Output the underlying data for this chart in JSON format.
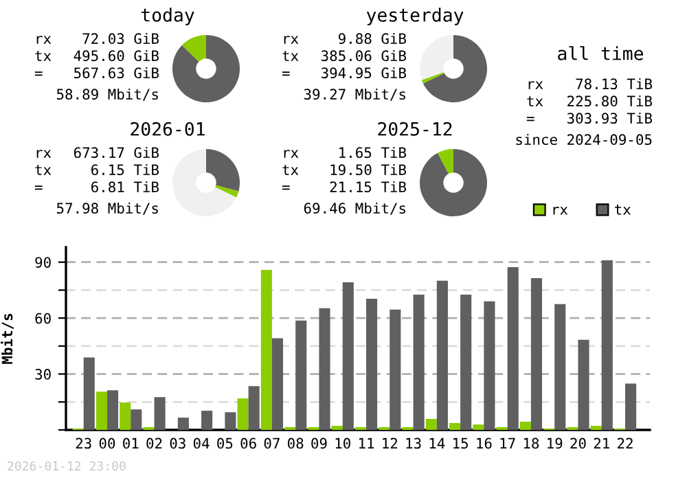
{
  "chart_data": [
    {
      "type": "donut",
      "title": "today",
      "categories": [
        null,
        null
      ],
      "values": [
        87.3,
        12.7
      ],
      "colors": [
        "#606060",
        "#8ccc00"
      ],
      "annotations": [
        "rx 72.03 GiB",
        "tx 495.60 GiB",
        "= 567.63 GiB",
        "58.89 Mbit/s"
      ]
    },
    {
      "type": "donut",
      "title": "yesterday",
      "categories": [
        null,
        null,
        null
      ],
      "values": [
        67.8,
        1.7,
        30.5
      ],
      "colors": [
        "#606060",
        "#8ccc00",
        "#f0f0f0"
      ],
      "annotations": [
        "rx 9.88 GiB",
        "tx 385.06 GiB",
        "= 394.95 GiB",
        "39.27 Mbit/s"
      ]
    },
    {
      "type": "other",
      "title": "all time",
      "annotations": [
        "rx 78.13 TiB",
        "tx 225.80 TiB",
        "= 303.93 TiB",
        "since 2024-09-05"
      ]
    },
    {
      "type": "donut",
      "title": "2026-01",
      "categories": [
        null,
        null,
        null
      ],
      "values": [
        29.1,
        3.1,
        67.8
      ],
      "colors": [
        "#606060",
        "#8ccc00",
        "#f0f0f0"
      ],
      "annotations": [
        "rx 673.17 GiB",
        "tx 6.15 TiB",
        "= 6.81 TiB",
        "57.98 Mbit/s"
      ]
    },
    {
      "type": "donut",
      "title": "2025-12",
      "categories": [
        null,
        null
      ],
      "values": [
        92.2,
        7.8
      ],
      "colors": [
        "#606060",
        "#8ccc00"
      ],
      "annotations": [
        "rx 1.65 TiB",
        "tx 19.50 TiB",
        "= 21.15 TiB",
        "69.46 Mbit/s"
      ]
    },
    {
      "type": "bar",
      "ylabel": "Mbit/s",
      "legend": "top right",
      "grid": "y",
      "categories": [
        "23",
        "00",
        "01",
        "02",
        "03",
        "04",
        "05",
        "06",
        "07",
        "08",
        "09",
        "10",
        "11",
        "12",
        "13",
        "14",
        "15",
        "16",
        "17",
        "18",
        "19",
        "20",
        "21",
        "22"
      ],
      "series": [
        {
          "name": "rx",
          "color": "#8ccc00",
          "values": [
            0.7,
            20.5,
            14.7,
            1.5,
            0,
            0,
            0,
            16.9,
            85.8,
            1.5,
            1.5,
            2.2,
            1.5,
            1.5,
            1.5,
            5.9,
            3.7,
            2.9,
            1.5,
            4.4,
            0.7,
            1.5,
            2.2,
            0.7
          ]
        },
        {
          "name": "tx",
          "color": "#606060",
          "values": [
            38.9,
            21.3,
            11.0,
            17.6,
            6.6,
            10.3,
            9.5,
            23.5,
            49.2,
            58.7,
            65.3,
            79.2,
            70.4,
            64.6,
            72.6,
            80.0,
            72.6,
            69.0,
            87.3,
            81.4,
            67.5,
            48.4,
            91.0,
            24.9
          ]
        }
      ],
      "ylim": [
        0,
        98
      ],
      "yticks": [
        {
          "value": 0,
          "label": null
        },
        {
          "value": 15,
          "label": null
        },
        30,
        {
          "value": 45,
          "label": null
        },
        60,
        {
          "value": 75,
          "label": null
        },
        90
      ],
      "annotations": [
        "2026-01-12 23:00"
      ]
    }
  ]
}
